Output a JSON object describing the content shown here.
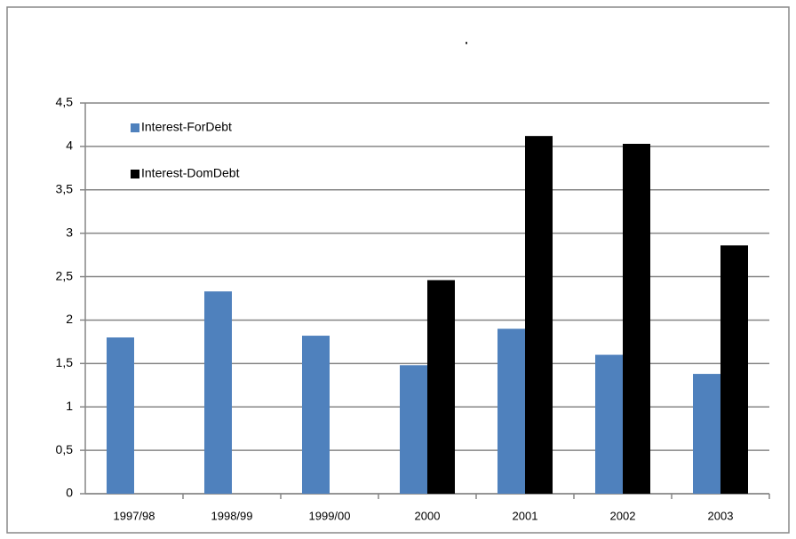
{
  "chart_data": {
    "type": "bar",
    "title": ".",
    "categories": [
      "1997/98",
      "1998/99",
      "1999/00",
      "2000",
      "2001",
      "2002",
      "2003"
    ],
    "series": [
      {
        "name": "Interest-ForDebt",
        "color": "#4f81bd",
        "values": [
          1.8,
          2.33,
          1.82,
          1.48,
          1.9,
          1.6,
          1.38
        ]
      },
      {
        "name": "Interest-DomDebt",
        "color": "#000000",
        "values": [
          null,
          null,
          null,
          2.46,
          4.12,
          4.03,
          2.86
        ]
      }
    ],
    "ylim": [
      0,
      4.5
    ],
    "yticks": [
      0,
      {
        "value": 0.5,
        "label": "0,5"
      },
      1,
      {
        "value": 1.5,
        "label": "1,5"
      },
      2,
      {
        "value": 2.5,
        "label": "2,5"
      },
      3,
      {
        "value": 3.5,
        "label": "3,5"
      },
      4,
      {
        "value": 4.5,
        "label": "4,5"
      }
    ],
    "grid": true,
    "legend": "upper left"
  }
}
